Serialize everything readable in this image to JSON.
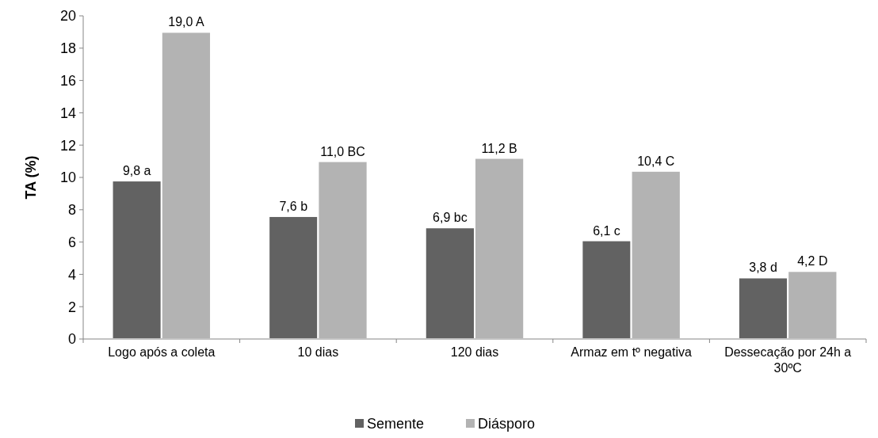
{
  "chart_data": {
    "type": "bar",
    "ylabel": "TA (%)",
    "categories": [
      "Logo após a coleta",
      "10 dias",
      "120 dias",
      "Armaz em tº negativa",
      "Dessecação por 24h a 30ºC"
    ],
    "series": [
      {
        "name": "Semente",
        "color": "#626262",
        "values": [
          9.8,
          7.6,
          6.9,
          6.1,
          3.8
        ],
        "value_labels": [
          "9,8 a",
          "7,6 b",
          "6,9 bc",
          "6,1 c",
          "3,8 d"
        ]
      },
      {
        "name": "Diásporo",
        "color": "#b3b3b3",
        "values": [
          19.0,
          11.0,
          11.2,
          10.4,
          4.2
        ],
        "value_labels": [
          "19,0 A",
          "11,0 BC",
          "11,2 B",
          "10,4 C",
          "4,2 D"
        ]
      }
    ],
    "ylim": [
      0,
      20
    ],
    "yticks": [
      0,
      2,
      4,
      6,
      8,
      10,
      12,
      14,
      16,
      18,
      20
    ],
    "grid": false,
    "legend": "bottom"
  }
}
